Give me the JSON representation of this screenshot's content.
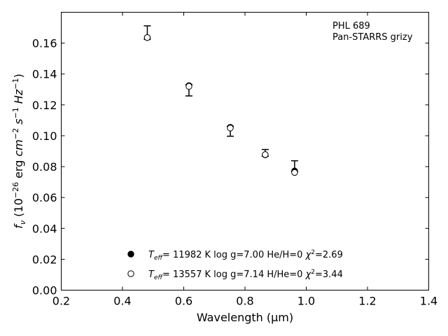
{
  "chart_data": {
    "type": "scatter",
    "xlabel": "Wavelength (μm)",
    "ylabel_parts": {
      "f": "f",
      "nu": "ν",
      "unit_open": " (10",
      "exp_a": "−26",
      "erg": " erg ",
      "cm": "cm",
      "exp_b": "−2",
      "s": " s",
      "exp_c": "−1",
      "hz": " Hz",
      "exp_d": "−1",
      "close": ")"
    },
    "xlim": [
      0.2,
      1.4
    ],
    "ylim": [
      0.0,
      0.18
    ],
    "xticks": [
      "0.2",
      "0.4",
      "0.6",
      "0.8",
      "1.0",
      "1.2",
      "1.4"
    ],
    "yticks": [
      "0.00",
      "0.02",
      "0.04",
      "0.06",
      "0.08",
      "0.10",
      "0.12",
      "0.14",
      "0.16"
    ],
    "annotation": {
      "line1": "PHL 689",
      "line2": "Pan-STARRS grizy"
    },
    "observed": [
      {
        "x": 0.481,
        "y": 0.1631,
        "err_lo": 0.0007,
        "err_hi": 0.0081
      },
      {
        "x": 0.617,
        "y": 0.1325,
        "err_lo": 0.0067,
        "err_hi": 0.0007
      },
      {
        "x": 0.752,
        "y": 0.1052,
        "err_lo": 0.0055,
        "err_hi": 0.001
      },
      {
        "x": 0.866,
        "y": 0.0876,
        "err_lo": 0.0009,
        "err_hi": 0.0035
      },
      {
        "x": 0.962,
        "y": 0.0774,
        "err_lo": 0.0007,
        "err_hi": 0.0064
      }
    ],
    "series": [
      {
        "marker": "filled",
        "label": {
          "teff": "T",
          "sub": "eff",
          "rest": "= 11982 K  log g=7.00  He/H=0  ",
          "chi": "χ",
          "sup": "2",
          "val": "=2.69"
        },
        "x": [
          0.481,
          0.617,
          0.752,
          0.866,
          0.962
        ],
        "values": [
          0.1636,
          0.1325,
          0.1055,
          0.0876,
          0.0772
        ]
      },
      {
        "marker": "open",
        "label": {
          "teff": "T",
          "sub": "eff",
          "rest": "= 13557 K  log g=7.14  H/He=0  ",
          "chi": "χ",
          "sup": "2",
          "val": "=3.44"
        },
        "x": [
          0.481,
          0.617,
          0.752,
          0.866,
          0.962
        ],
        "values": [
          0.1636,
          0.132,
          0.105,
          0.0878,
          0.0762
        ]
      }
    ],
    "legend_placement": "lower-center",
    "grid": false
  }
}
